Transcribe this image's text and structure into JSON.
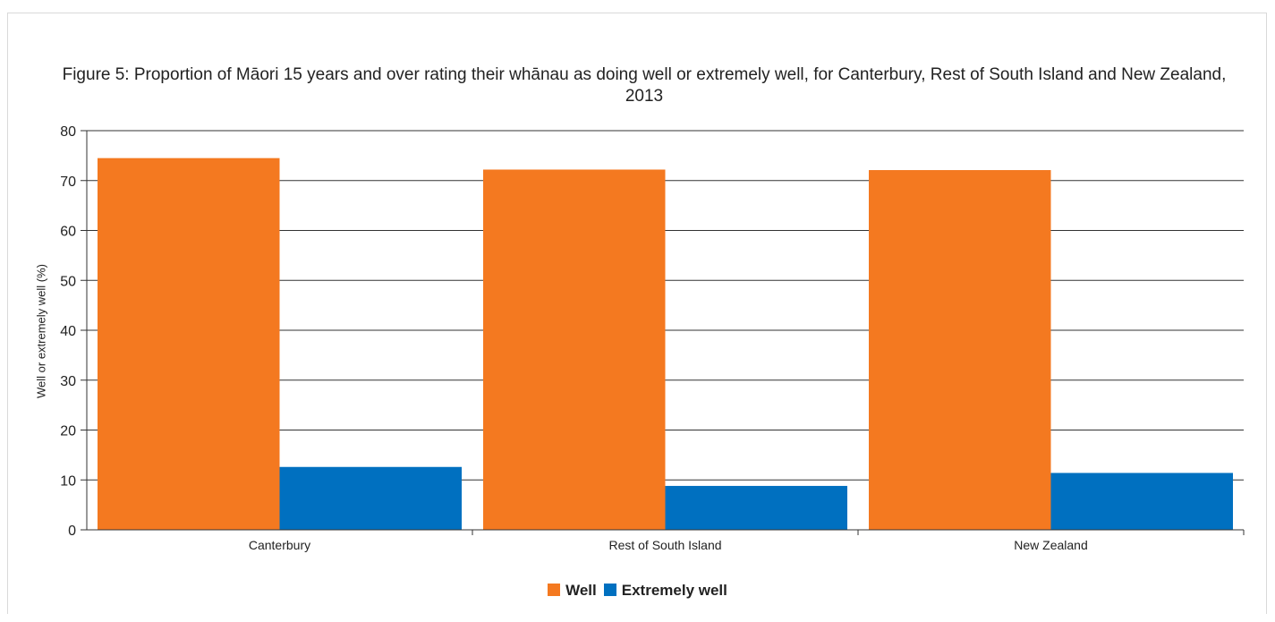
{
  "chart_data": {
    "type": "bar",
    "title": "Figure 5: Proportion of Māori 15 years and over rating their whānau as doing well or extremely well, for Canterbury, Rest of South Island and New Zealand, 2013",
    "xlabel": "",
    "ylabel": "Well or extremely well (%)",
    "categories": [
      "Canterbury",
      "Rest of South Island",
      "New Zealand"
    ],
    "series": [
      {
        "name": "Well",
        "color": "#f47920",
        "values": [
          74.5,
          72.2,
          72.1
        ]
      },
      {
        "name": "Extremely well",
        "color": "#0070c0",
        "values": [
          12.6,
          8.8,
          11.4
        ]
      }
    ],
    "ylim": [
      0,
      80
    ],
    "yticks": [
      "0",
      "10",
      "20",
      "30",
      "40",
      "50",
      "60",
      "70",
      "80"
    ],
    "grid": true,
    "legend_position": "bottom"
  }
}
